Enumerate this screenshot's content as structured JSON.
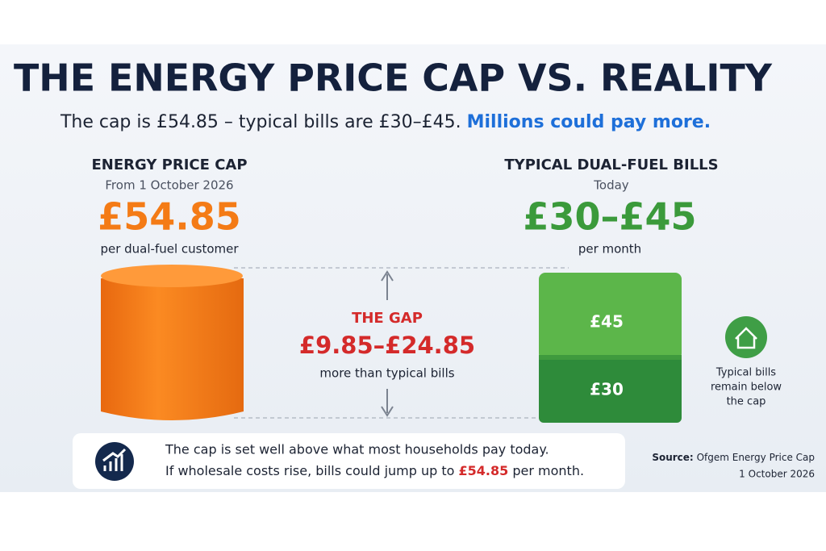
{
  "header": {
    "title": "THE ENERGY PRICE CAP VS. REALITY",
    "subtitle": "The cap is £54.85 – typical bills are £30–£45.",
    "subtitle_highlight": "Millions could pay more."
  },
  "cap": {
    "heading": "ENERGY PRICE CAP",
    "date": "From 1 October 2026",
    "amount": "£54.85",
    "unit": "per dual-fuel customer"
  },
  "gap": {
    "heading": "THE GAP",
    "amount": "£9.85–£24.85",
    "note": "more than typical bills"
  },
  "bills": {
    "heading": "TYPICAL DUAL-FUEL BILLS",
    "date": "Today",
    "amount": "£30–£45",
    "unit": "per month",
    "upper_label": "£45",
    "lower_label": "£30",
    "callout": [
      "Typical bills",
      "remain below",
      "the cap"
    ]
  },
  "footer": {
    "line1": "The cap is set well above what most households pay today.",
    "line2_start": "If wholesale costs rise, bills could jump up to",
    "line2_amount": "£54.85",
    "line2_end": "per month."
  },
  "source": {
    "label": "Source:",
    "name": "Ofgem Energy Price Cap",
    "date": "1 October 2026"
  }
}
